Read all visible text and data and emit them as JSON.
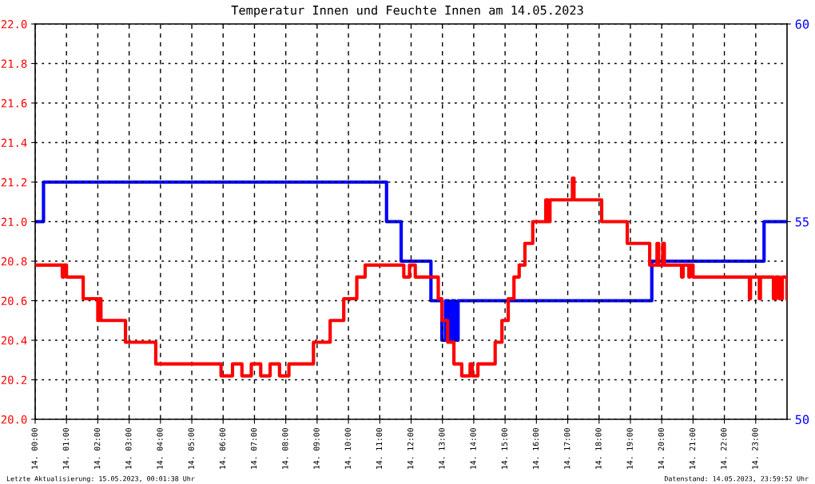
{
  "chart_data": {
    "type": "step",
    "title": "Temperatur Innen und Feuchte Innen am 14.05.2023",
    "xlim": [
      "2023-05-14T00:00",
      "2023-05-15T00:00"
    ],
    "xticks": [
      {
        "value": "2023-05-14T00:00",
        "label": "14. 00:00"
      },
      {
        "value": "2023-05-14T01:00",
        "label": "14. 01:00"
      },
      {
        "value": "2023-05-14T02:00",
        "label": "14. 02:00"
      },
      {
        "value": "2023-05-14T03:00",
        "label": "14. 03:00"
      },
      {
        "value": "2023-05-14T04:00",
        "label": "14. 04:00"
      },
      {
        "value": "2023-05-14T05:00",
        "label": "14. 05:00"
      },
      {
        "value": "2023-05-14T06:00",
        "label": "14. 06:00"
      },
      {
        "value": "2023-05-14T07:00",
        "label": "14. 07:00"
      },
      {
        "value": "2023-05-14T08:00",
        "label": "14. 08:00"
      },
      {
        "value": "2023-05-14T09:00",
        "label": "14. 09:00"
      },
      {
        "value": "2023-05-14T10:00",
        "label": "14. 10:00"
      },
      {
        "value": "2023-05-14T11:00",
        "label": "14. 11:00"
      },
      {
        "value": "2023-05-14T12:00",
        "label": "14. 12:00"
      },
      {
        "value": "2023-05-14T13:00",
        "label": "14. 13:00"
      },
      {
        "value": "2023-05-14T14:00",
        "label": "14. 14:00"
      },
      {
        "value": "2023-05-14T15:00",
        "label": "14. 15:00"
      },
      {
        "value": "2023-05-14T16:00",
        "label": "14. 16:00"
      },
      {
        "value": "2023-05-14T17:00",
        "label": "14. 17:00"
      },
      {
        "value": "2023-05-14T18:00",
        "label": "14. 18:00"
      },
      {
        "value": "2023-05-14T19:00",
        "label": "14. 19:00"
      },
      {
        "value": "2023-05-14T20:00",
        "label": "14. 20:00"
      },
      {
        "value": "2023-05-14T21:00",
        "label": "14. 21:00"
      },
      {
        "value": "2023-05-14T22:00",
        "label": "14. 22:00"
      },
      {
        "value": "2023-05-14T23:00",
        "label": "14. 23:00"
      }
    ],
    "ylim": [
      20.0,
      22.0
    ],
    "yticks": [
      {
        "value": 20.0,
        "label": "20.0"
      },
      {
        "value": 20.2,
        "label": "20.2"
      },
      {
        "value": 20.4,
        "label": "20.4"
      },
      {
        "value": 20.6,
        "label": "20.6"
      },
      {
        "value": 20.8,
        "label": "20.8"
      },
      {
        "value": 21.0,
        "label": "21.0"
      },
      {
        "value": 21.2,
        "label": "21.2"
      },
      {
        "value": 21.4,
        "label": "21.4"
      },
      {
        "value": 21.6,
        "label": "21.6"
      },
      {
        "value": 21.8,
        "label": "21.8"
      },
      {
        "value": 22.0,
        "label": "22.0"
      }
    ],
    "y2lim": [
      50,
      60
    ],
    "y2ticks": [
      50,
      55,
      60
    ],
    "grid": true,
    "line_style": "solid",
    "marker": "none",
    "series": [
      {
        "color": "#ff0000",
        "x": [
          "2023-05-14T00:00",
          "2023-05-14T00:52",
          "2023-05-14T00:55",
          "2023-05-14T01:00",
          "2023-05-14T01:32",
          "2023-05-14T02:00",
          "2023-05-14T02:03",
          "2023-05-14T02:06",
          "2023-05-14T02:50",
          "2023-05-14T02:53",
          "2023-05-14T03:51",
          "2023-05-14T05:56",
          "2023-05-14T06:18",
          "2023-05-14T06:36",
          "2023-05-14T06:54",
          "2023-05-14T07:12",
          "2023-05-14T07:30",
          "2023-05-14T07:48",
          "2023-05-14T08:06",
          "2023-05-14T08:53",
          "2023-05-14T09:25",
          "2023-05-14T09:51",
          "2023-05-14T10:16",
          "2023-05-14T10:32",
          "2023-05-14T11:46",
          "2023-05-14T11:57",
          "2023-05-14T12:08",
          "2023-05-14T12:39",
          "2023-05-14T12:52",
          "2023-05-14T12:59",
          "2023-05-14T13:10",
          "2023-05-14T13:22",
          "2023-05-14T13:37",
          "2023-05-14T13:53",
          "2023-05-14T13:57",
          "2023-05-14T14:08",
          "2023-05-14T14:41",
          "2023-05-14T14:54",
          "2023-05-14T15:06",
          "2023-05-14T15:17",
          "2023-05-14T15:27",
          "2023-05-14T15:38",
          "2023-05-14T15:53",
          "2023-05-14T16:18",
          "2023-05-14T16:22",
          "2023-05-14T16:26",
          "2023-05-14T17:09",
          "2023-05-14T17:12",
          "2023-05-14T18:05",
          "2023-05-14T18:54",
          "2023-05-14T19:37",
          "2023-05-14T19:51",
          "2023-05-14T19:54",
          "2023-05-14T20:02",
          "2023-05-14T20:05",
          "2023-05-14T20:38",
          "2023-05-14T20:41",
          "2023-05-14T20:52",
          "2023-05-14T20:54",
          "2023-05-14T21:00",
          "2023-05-14T22:48",
          "2023-05-14T22:50",
          "2023-05-14T23:07",
          "2023-05-14T23:09",
          "2023-05-14T23:34",
          "2023-05-14T23:39",
          "2023-05-14T23:45",
          "2023-05-14T23:51",
          "2023-05-15T00:00"
        ],
        "values": [
          20.78,
          20.72,
          20.78,
          20.72,
          20.61,
          20.5,
          20.61,
          20.5,
          20.5,
          20.39,
          20.28,
          20.22,
          20.28,
          20.22,
          20.28,
          20.22,
          20.28,
          20.22,
          20.28,
          20.39,
          20.5,
          20.61,
          20.72,
          20.78,
          20.72,
          20.78,
          20.72,
          20.72,
          20.61,
          20.5,
          20.39,
          20.28,
          20.22,
          20.28,
          20.22,
          20.28,
          20.39,
          20.5,
          20.61,
          20.72,
          20.78,
          20.89,
          21.0,
          21.11,
          21.0,
          21.11,
          21.22,
          21.11,
          21.0,
          20.89,
          20.78,
          20.89,
          20.78,
          20.89,
          20.78,
          20.72,
          20.78,
          20.72,
          20.78,
          20.72,
          20.61,
          20.72,
          20.61,
          20.72,
          20.61,
          20.72,
          20.61,
          20.72,
          20.61
        ]
      },
      {
        "color": "#0000ff",
        "axis": "y2",
        "x": [
          "2023-05-14T00:00",
          "2023-05-14T00:16",
          "2023-05-14T11:13",
          "2023-05-14T11:41",
          "2023-05-14T12:38",
          "2023-05-14T12:59",
          "2023-05-14T13:06",
          "2023-05-14T13:12",
          "2023-05-14T13:18",
          "2023-05-14T13:24",
          "2023-05-14T13:30",
          "2023-05-14T13:36",
          "2023-05-14T19:41",
          "2023-05-14T23:16",
          "2023-05-15T00:00"
        ],
        "values": [
          55,
          56,
          55,
          54,
          53,
          52,
          53,
          52,
          53,
          52,
          53,
          53,
          54,
          55,
          55
        ]
      }
    ],
    "annotations": [
      "Letzte Aktualisierung: 15.05.2023, 00:01:38 Uhr",
      "Datenstand: 14.05.2023, 23:59:52 Uhr"
    ]
  }
}
